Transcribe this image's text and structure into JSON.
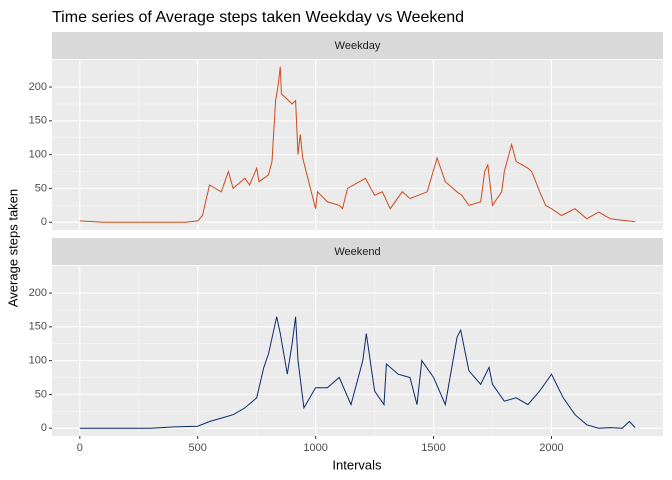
{
  "chart_data": {
    "type": "line",
    "title": "Time series of Average steps taken Weekday vs Weekend",
    "x_label": "Intervals",
    "y_label": "Average steps taken",
    "xlim": [
      -118,
      2473
    ],
    "xticks": [
      0,
      500,
      1000,
      1500,
      2000
    ],
    "ylim": [
      -11.5,
      240
    ],
    "yticks": [
      0,
      50,
      100,
      150,
      200
    ],
    "grid": true,
    "series": [
      {
        "name": "Weekday",
        "color": "#cc4a1d",
        "x": [
          0,
          100,
          200,
          300,
          400,
          450,
          500,
          520,
          550,
          600,
          630,
          650,
          700,
          720,
          750,
          760,
          800,
          815,
          830,
          840,
          850,
          855,
          900,
          915,
          925,
          935,
          945,
          1000,
          1008,
          1050,
          1100,
          1114,
          1135,
          1211,
          1250,
          1283,
          1316,
          1367,
          1400,
          1473,
          1515,
          1550,
          1599,
          1620,
          1650,
          1700,
          1717,
          1730,
          1750,
          1789,
          1800,
          1831,
          1850,
          1900,
          1916,
          1950,
          1975,
          2000,
          2042,
          2100,
          2150,
          2200,
          2250,
          2300,
          2355
        ],
        "values": [
          2,
          0,
          0,
          0,
          0,
          0,
          2,
          10,
          55,
          45,
          75,
          50,
          65,
          55,
          80,
          60,
          70,
          90,
          180,
          200,
          230,
          190,
          175,
          180,
          100,
          130,
          95,
          20,
          45,
          30,
          25,
          20,
          50,
          65,
          40,
          45,
          20,
          45,
          35,
          45,
          95,
          60,
          45,
          40,
          25,
          30,
          75,
          85,
          25,
          45,
          75,
          115,
          90,
          80,
          75,
          45,
          25,
          20,
          10,
          20,
          5,
          15,
          5,
          3,
          1
        ]
      },
      {
        "name": "Weekend",
        "color": "#0b2a6b",
        "x": [
          0,
          100,
          200,
          300,
          400,
          500,
          550,
          600,
          650,
          700,
          750,
          780,
          800,
          835,
          850,
          880,
          900,
          915,
          925,
          950,
          1000,
          1050,
          1100,
          1150,
          1200,
          1215,
          1250,
          1290,
          1300,
          1350,
          1400,
          1430,
          1450,
          1500,
          1550,
          1600,
          1615,
          1650,
          1700,
          1735,
          1750,
          1800,
          1850,
          1900,
          1950,
          2000,
          2050,
          2100,
          2150,
          2200,
          2250,
          2300,
          2330,
          2355
        ],
        "values": [
          0,
          0,
          0,
          0,
          2,
          3,
          10,
          15,
          20,
          30,
          45,
          90,
          110,
          165,
          140,
          80,
          125,
          165,
          100,
          30,
          60,
          60,
          75,
          35,
          100,
          140,
          55,
          35,
          95,
          80,
          75,
          35,
          100,
          75,
          35,
          135,
          145,
          85,
          65,
          90,
          65,
          40,
          45,
          35,
          55,
          80,
          45,
          20,
          5,
          0,
          1,
          0,
          10,
          1
        ]
      }
    ]
  }
}
